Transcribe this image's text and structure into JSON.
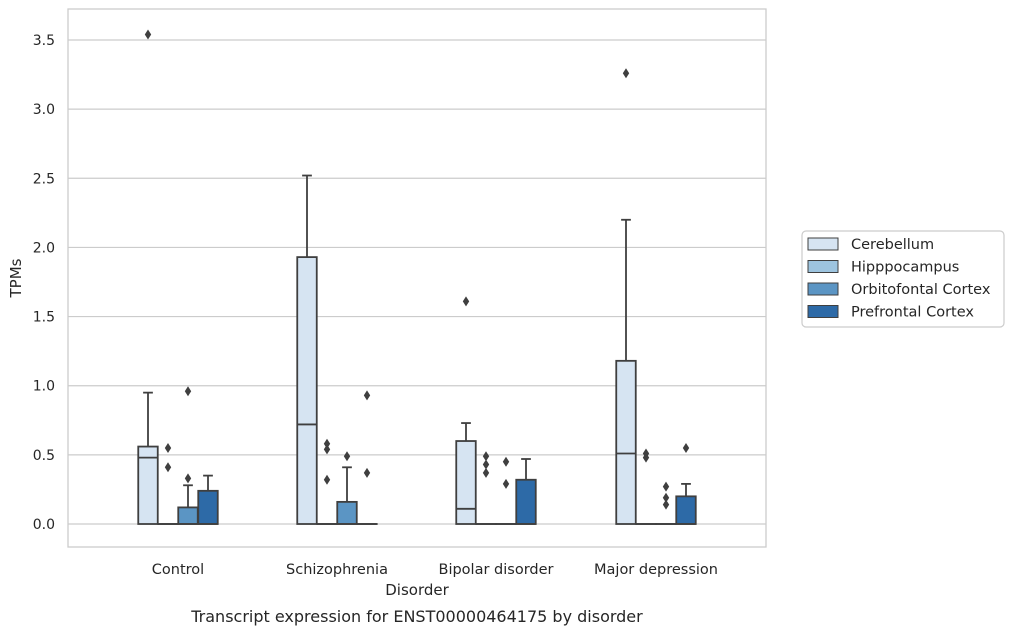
{
  "chart_data": {
    "type": "box",
    "title": "",
    "caption": "Transcript expression for ENST00000464175 by disorder",
    "xlabel": "Disorder",
    "ylabel": "TPMs",
    "ylim": [
      -0.17,
      3.72
    ],
    "yticks": [
      0.0,
      0.5,
      1.0,
      1.5,
      2.0,
      2.5,
      3.0,
      3.5
    ],
    "ytick_labels": [
      "0.0",
      "0.5",
      "1.0",
      "1.5",
      "2.0",
      "2.5",
      "3.0",
      "3.5"
    ],
    "grid": "horizontal",
    "legend_position": "right",
    "categories": [
      "Control",
      "Schizophrenia",
      "Bipolar disorder",
      "Major depression"
    ],
    "series": [
      {
        "name": "Cerebellum",
        "color": "#d6e4f2",
        "boxes": [
          {
            "q1": 0.0,
            "median": 0.48,
            "q3": 0.56,
            "whisker_low": 0.0,
            "whisker_high": 0.95,
            "outliers": [
              3.54
            ]
          },
          {
            "q1": 0.0,
            "median": 0.72,
            "q3": 1.93,
            "whisker_low": 0.0,
            "whisker_high": 2.52,
            "outliers": []
          },
          {
            "q1": 0.0,
            "median": 0.11,
            "q3": 0.6,
            "whisker_low": 0.0,
            "whisker_high": 0.73,
            "outliers": [
              1.61
            ]
          },
          {
            "q1": 0.0,
            "median": 0.51,
            "q3": 1.18,
            "whisker_low": 0.0,
            "whisker_high": 2.2,
            "outliers": [
              3.26
            ]
          }
        ]
      },
      {
        "name": "Hipppocampus",
        "color": "#9dc4df",
        "boxes": [
          {
            "q1": 0.0,
            "median": 0.0,
            "q3": 0.0,
            "whisker_low": 0.0,
            "whisker_high": 0.0,
            "outliers": [
              0.41,
              0.55
            ]
          },
          {
            "q1": 0.0,
            "median": 0.0,
            "q3": 0.0,
            "whisker_low": 0.0,
            "whisker_high": 0.0,
            "outliers": [
              0.32,
              0.54,
              0.58
            ]
          },
          {
            "q1": 0.0,
            "median": 0.0,
            "q3": 0.0,
            "whisker_low": 0.0,
            "whisker_high": 0.0,
            "outliers": [
              0.37,
              0.43,
              0.49
            ]
          },
          {
            "q1": 0.0,
            "median": 0.0,
            "q3": 0.0,
            "whisker_low": 0.0,
            "whisker_high": 0.0,
            "outliers": [
              0.48,
              0.51
            ]
          }
        ]
      },
      {
        "name": "Orbitofontal Cortex",
        "color": "#5b95c4",
        "boxes": [
          {
            "q1": 0.0,
            "median": 0.0,
            "q3": 0.12,
            "whisker_low": 0.0,
            "whisker_high": 0.28,
            "outliers": [
              0.33,
              0.96
            ]
          },
          {
            "q1": 0.0,
            "median": 0.0,
            "q3": 0.16,
            "whisker_low": 0.0,
            "whisker_high": 0.41,
            "outliers": [
              0.49
            ]
          },
          {
            "q1": 0.0,
            "median": 0.0,
            "q3": 0.0,
            "whisker_low": 0.0,
            "whisker_high": 0.0,
            "outliers": [
              0.29,
              0.45
            ]
          },
          {
            "q1": 0.0,
            "median": 0.0,
            "q3": 0.0,
            "whisker_low": 0.0,
            "whisker_high": 0.0,
            "outliers": [
              0.14,
              0.19,
              0.27
            ]
          }
        ]
      },
      {
        "name": "Prefrontal Cortex",
        "color": "#2d6aa7",
        "boxes": [
          {
            "q1": 0.0,
            "median": 0.0,
            "q3": 0.24,
            "whisker_low": 0.0,
            "whisker_high": 0.35,
            "outliers": []
          },
          {
            "q1": 0.0,
            "median": 0.0,
            "q3": 0.0,
            "whisker_low": 0.0,
            "whisker_high": 0.0,
            "outliers": [
              0.37,
              0.93
            ]
          },
          {
            "q1": 0.0,
            "median": 0.0,
            "q3": 0.32,
            "whisker_low": 0.0,
            "whisker_high": 0.47,
            "outliers": []
          },
          {
            "q1": 0.0,
            "median": 0.0,
            "q3": 0.2,
            "whisker_low": 0.0,
            "whisker_high": 0.29,
            "outliers": [
              0.55
            ]
          }
        ]
      }
    ]
  }
}
